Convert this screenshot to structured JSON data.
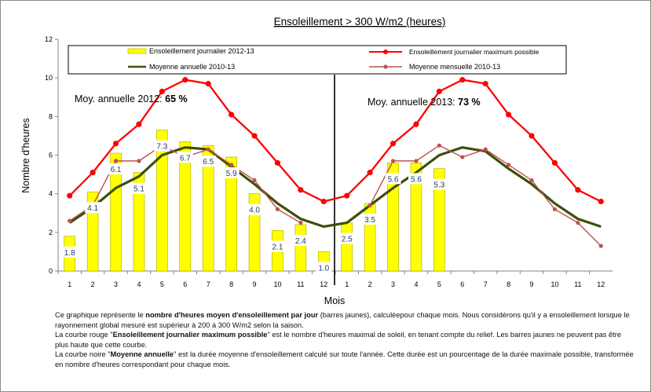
{
  "chart_data": {
    "type": "bar",
    "title": "Ensoleillement  > 300 W/m2 (heures)",
    "xlabel": "Mois",
    "ylabel": "Nombre d'heures",
    "ylim": [
      0,
      12
    ],
    "yticks": [
      "0",
      "2",
      "4",
      "6",
      "8",
      "10",
      "12"
    ],
    "categories": [
      "1",
      "2",
      "3",
      "4",
      "5",
      "6",
      "7",
      "8",
      "9",
      "10",
      "11",
      "12",
      "1",
      "2",
      "3",
      "4",
      "5",
      "6",
      "7",
      "8",
      "9",
      "10",
      "11",
      "12"
    ],
    "legend": {
      "placement": "top",
      "entries": [
        "Ensoleillement  journalier  2012-13",
        "Ensoleillement  journalier maximum possible",
        "Moyenne annuelle   2010-13",
        "Moyenne mensuelle  2010-13"
      ]
    },
    "series": [
      {
        "name": "Ensoleillement  journalier  2012-13",
        "kind": "bar",
        "color": "#ffff00",
        "values": [
          1.8,
          4.1,
          6.1,
          5.1,
          7.3,
          6.7,
          6.5,
          5.9,
          4.0,
          2.1,
          2.4,
          1.0,
          2.5,
          3.5,
          5.6,
          5.6,
          5.3,
          null,
          null,
          null,
          null,
          null,
          null,
          null
        ],
        "labels": [
          "1.8",
          "4.1",
          "6.1",
          "5.1",
          "7.3",
          "6.7",
          "6.5",
          "5.9",
          "4.0",
          "2.1",
          "2.4",
          "1.0",
          "2.5",
          "3.5",
          "5.6",
          "5.6",
          "5.3",
          "",
          "",
          "",
          "",
          "",
          "",
          ""
        ]
      },
      {
        "name": "Ensoleillement  journalier maximum possible",
        "kind": "line",
        "color": "#ff0000",
        "values": [
          3.9,
          5.1,
          6.6,
          7.6,
          9.3,
          9.9,
          9.7,
          8.1,
          7.0,
          5.6,
          4.2,
          3.6,
          3.9,
          5.1,
          6.6,
          7.6,
          9.3,
          9.9,
          9.7,
          8.1,
          7.0,
          5.6,
          4.2,
          3.6
        ]
      },
      {
        "name": "Moyenne annuelle   2010-13",
        "kind": "line",
        "color": "#3d4f0a",
        "values": [
          2.5,
          3.3,
          4.3,
          4.9,
          6.0,
          6.4,
          6.3,
          5.4,
          4.5,
          3.5,
          2.7,
          2.3,
          2.5,
          3.4,
          4.3,
          5.1,
          6.0,
          6.4,
          6.2,
          5.3,
          4.5,
          3.5,
          2.7,
          2.3
        ]
      },
      {
        "name": "Moyenne mensuelle  2010-13",
        "kind": "line",
        "color": "#c0504d",
        "values": [
          2.6,
          3.4,
          5.7,
          5.7,
          6.5,
          5.9,
          6.3,
          5.5,
          4.7,
          3.2,
          2.5,
          null,
          null,
          3.4,
          5.7,
          5.7,
          6.5,
          5.9,
          6.3,
          5.5,
          4.7,
          3.2,
          2.5,
          1.3
        ]
      }
    ],
    "annotations": [
      {
        "text": "Moy. annuelle 2012: ",
        "bold_part": "65 %"
      },
      {
        "text": "Moy. annuelle 2013: ",
        "bold_part": "73 %"
      }
    ],
    "grid": false
  },
  "description": {
    "p1_before": "Ce graphique  représente le ",
    "p1_bold": "nombre d'heures moyen d'ensoleillement par jour",
    "p1_after": " (barres jaunes), calculéepour chaque mois. Nous considérons qu'il y a ensoleillement lorsque le rayonnement global mesuré est supérieur à 200 à 300 W/m2 selon la saison.",
    "p2_before": "La courbe rouge \"",
    "p2_bold": "Ensoleillement journalier  maximum possible",
    "p2_after": "\" est le  nombre d'heures maximal de soleil, en tenant compte du relief. Les barres jaunes ne peuvent pas être plus haute que cette courbe.",
    "p3_before": "La courbe noire \"",
    "p3_bold": "Moyenne annuelle",
    "p3_after": "\"  est la durée moyenne d'ensoleillement calculé sur toute l'année. Cette durée est un pourcentage de la durée maximale possible, transformée en nombre d'heures correspondant pour chaque mois."
  }
}
